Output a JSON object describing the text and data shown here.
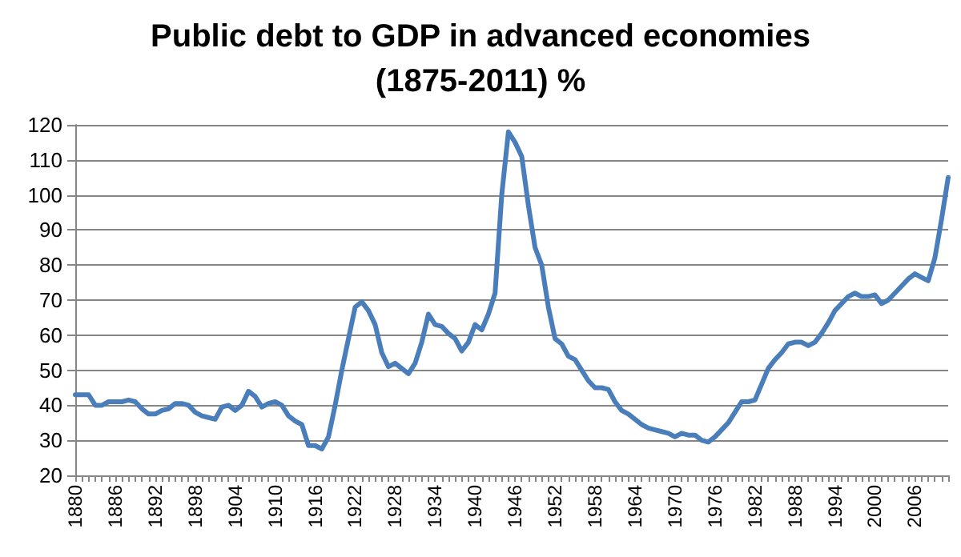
{
  "chart_data": {
    "type": "line",
    "title": "Public debt to GDP in advanced economies\n(1875-2011) %",
    "categories": [
      "1880",
      null,
      null,
      null,
      null,
      null,
      "1886",
      null,
      null,
      null,
      null,
      null,
      "1892",
      null,
      null,
      null,
      null,
      null,
      "1898",
      null,
      null,
      null,
      null,
      null,
      "1904",
      null,
      null,
      null,
      null,
      null,
      "1910",
      null,
      null,
      null,
      null,
      null,
      "1916",
      null,
      null,
      null,
      null,
      null,
      "1922",
      null,
      null,
      null,
      null,
      null,
      "1928",
      null,
      null,
      null,
      null,
      null,
      "1934",
      null,
      null,
      null,
      null,
      null,
      "1940",
      null,
      null,
      null,
      null,
      null,
      "1946",
      null,
      null,
      null,
      null,
      null,
      "1952",
      null,
      null,
      null,
      null,
      null,
      "1958",
      null,
      null,
      null,
      null,
      null,
      "1964",
      null,
      null,
      null,
      null,
      null,
      "1970",
      null,
      null,
      null,
      null,
      null,
      "1976",
      null,
      null,
      null,
      null,
      null,
      "1982",
      null,
      null,
      null,
      null,
      null,
      "1988",
      null,
      null,
      null,
      null,
      null,
      "1994",
      null,
      null,
      null,
      null,
      null,
      "2000",
      null,
      null,
      null,
      null,
      null,
      "2006",
      null,
      null,
      null,
      null,
      null
    ],
    "series": [
      {
        "color": "#4a7ebb",
        "values": [
          43,
          43,
          43,
          40,
          40,
          41,
          41,
          41,
          41.5,
          41,
          39,
          37.5,
          37.5,
          38.5,
          39,
          40.5,
          40.5,
          40,
          38,
          37,
          36.5,
          36,
          39.5,
          40,
          38.5,
          40,
          44,
          42.5,
          39.5,
          40.5,
          41,
          40,
          37,
          35.5,
          34.5,
          28.5,
          28.5,
          27.5,
          31,
          40,
          50,
          59,
          68,
          69.5,
          67,
          63,
          55,
          51,
          52,
          50.5,
          49,
          52,
          58,
          66,
          63,
          62.5,
          60.5,
          59,
          55.5,
          58,
          63,
          61.5,
          66,
          72,
          100,
          118,
          115,
          111,
          97,
          85,
          80,
          68,
          59,
          57.5,
          54,
          53,
          50,
          47,
          45,
          45,
          44.5,
          41,
          38.5,
          37.5,
          36,
          34.5,
          33.5,
          33,
          32.5,
          32,
          31,
          32,
          31.5,
          31.5,
          30,
          29.5,
          31,
          33,
          35,
          38,
          41,
          41,
          41.5,
          46,
          50.5,
          53,
          55,
          57.5,
          58,
          58,
          57,
          58,
          60.5,
          63.5,
          67,
          69,
          71,
          72,
          71,
          71,
          71.5,
          69,
          70,
          72,
          74,
          76,
          77.5,
          76.5,
          75.5,
          82,
          93,
          105
        ]
      }
    ],
    "ylim": [
      20,
      120
    ],
    "yticks": [
      20,
      30,
      40,
      50,
      60,
      70,
      80,
      90,
      100,
      110,
      120
    ],
    "grid": "y",
    "marker": "none",
    "line_style": "solid"
  }
}
